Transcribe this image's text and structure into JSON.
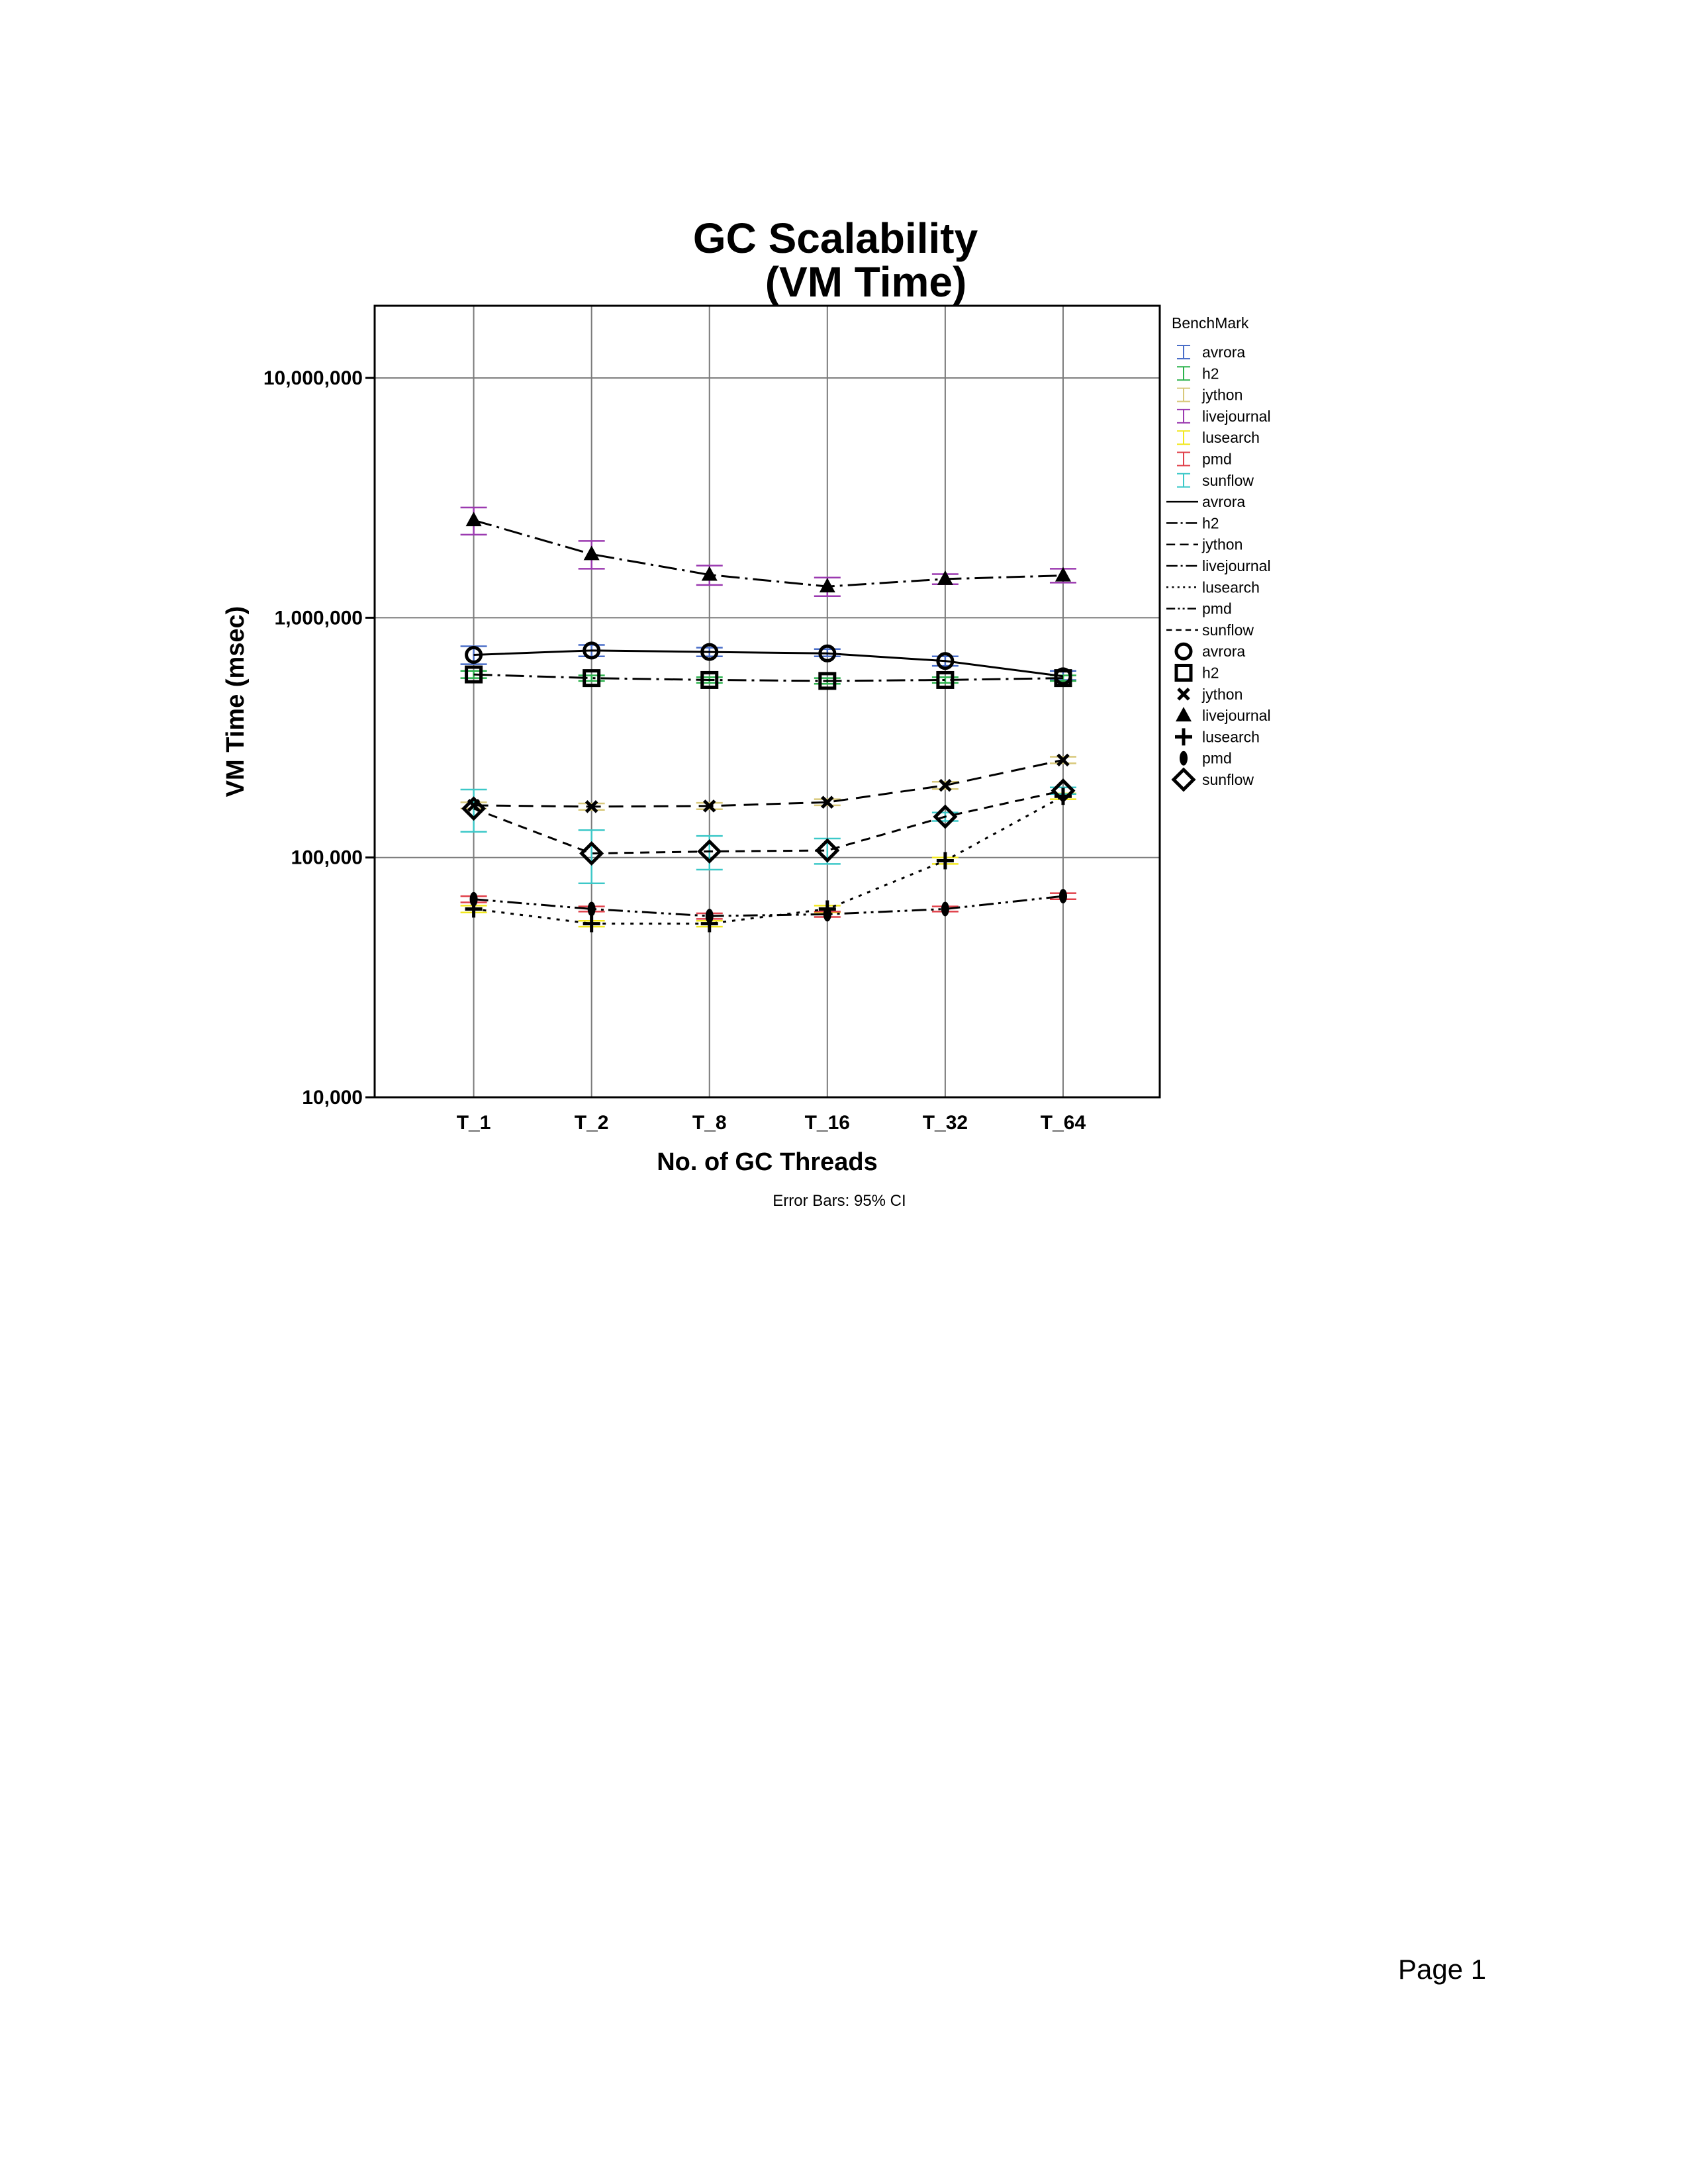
{
  "page": {
    "page_label": "Page 1"
  },
  "chart_data": {
    "type": "line",
    "title": "GC Scalability",
    "subtitle": "(VM Time)",
    "xlabel": "No. of GC Threads",
    "ylabel": "VM Time (msec)",
    "y_scale": "log",
    "ylim": [
      10000,
      20000000
    ],
    "y_ticks": [
      10000,
      100000,
      1000000,
      10000000
    ],
    "y_tick_labels": [
      "10,000",
      "100,000",
      "1,000,000",
      "10,000,000"
    ],
    "categories": [
      "T_1",
      "T_2",
      "T_8",
      "T_16",
      "T_32",
      "T_64"
    ],
    "grid": true,
    "legend_title": "BenchMark",
    "legend_position": "right",
    "footnote": "Error Bars: 95% CI",
    "series": [
      {
        "name": "avrora",
        "color": "#4a6ec8",
        "dash": "solid",
        "marker": "circle",
        "values": [
          700000,
          730000,
          720000,
          710000,
          660000,
          570000
        ],
        "ci_low": [
          640000,
          690000,
          690000,
          690000,
          630000,
          550000
        ],
        "ci_high": [
          760000,
          770000,
          750000,
          740000,
          690000,
          600000
        ]
      },
      {
        "name": "h2",
        "color": "#2bb24c",
        "dash": "dashdot",
        "marker": "square",
        "values": [
          580000,
          560000,
          550000,
          545000,
          550000,
          560000
        ],
        "ci_low": [
          560000,
          545000,
          535000,
          530000,
          535000,
          545000
        ],
        "ci_high": [
          600000,
          575000,
          565000,
          560000,
          565000,
          575000
        ]
      },
      {
        "name": "jython",
        "color": "#d8c87a",
        "dash": "dashed",
        "marker": "x",
        "values": [
          165000,
          163000,
          164000,
          170000,
          200000,
          255000
        ],
        "ci_low": [
          160000,
          158000,
          159000,
          165000,
          193000,
          247000
        ],
        "ci_high": [
          170000,
          168000,
          169000,
          175000,
          207000,
          263000
        ]
      },
      {
        "name": "livejournal",
        "color": "#9b3ab0",
        "dash": "dashdot",
        "marker": "triangle",
        "values": [
          2550000,
          1840000,
          1510000,
          1350000,
          1450000,
          1500000
        ],
        "ci_low": [
          2220000,
          1600000,
          1370000,
          1230000,
          1380000,
          1400000
        ],
        "ci_high": [
          2880000,
          2090000,
          1650000,
          1470000,
          1520000,
          1600000
        ]
      },
      {
        "name": "lusearch",
        "color": "#f2e81e",
        "dash": "dotted",
        "marker": "plus",
        "values": [
          61000,
          53000,
          53000,
          61000,
          97000,
          180000
        ],
        "ci_low": [
          59000,
          51500,
          51500,
          59000,
          94000,
          175000
        ],
        "ci_high": [
          63000,
          54500,
          54500,
          63000,
          100000,
          185000
        ]
      },
      {
        "name": "pmd",
        "color": "#e0404a",
        "dash": "dashdotdot",
        "marker": "ellipse",
        "values": [
          67000,
          61000,
          57000,
          58000,
          61000,
          69000
        ],
        "ci_low": [
          65000,
          59500,
          55500,
          56500,
          59500,
          67000
        ],
        "ci_high": [
          69000,
          62500,
          58500,
          59500,
          62500,
          71000
        ]
      },
      {
        "name": "sunflow",
        "color": "#3cc8c8",
        "dash": "shortdash",
        "marker": "diamond",
        "values": [
          160000,
          104000,
          106000,
          107000,
          148000,
          190000
        ],
        "ci_low": [
          128000,
          78000,
          89000,
          94000,
          142000,
          184000
        ],
        "ci_high": [
          192000,
          130000,
          123000,
          120000,
          154000,
          196000
        ]
      }
    ]
  }
}
